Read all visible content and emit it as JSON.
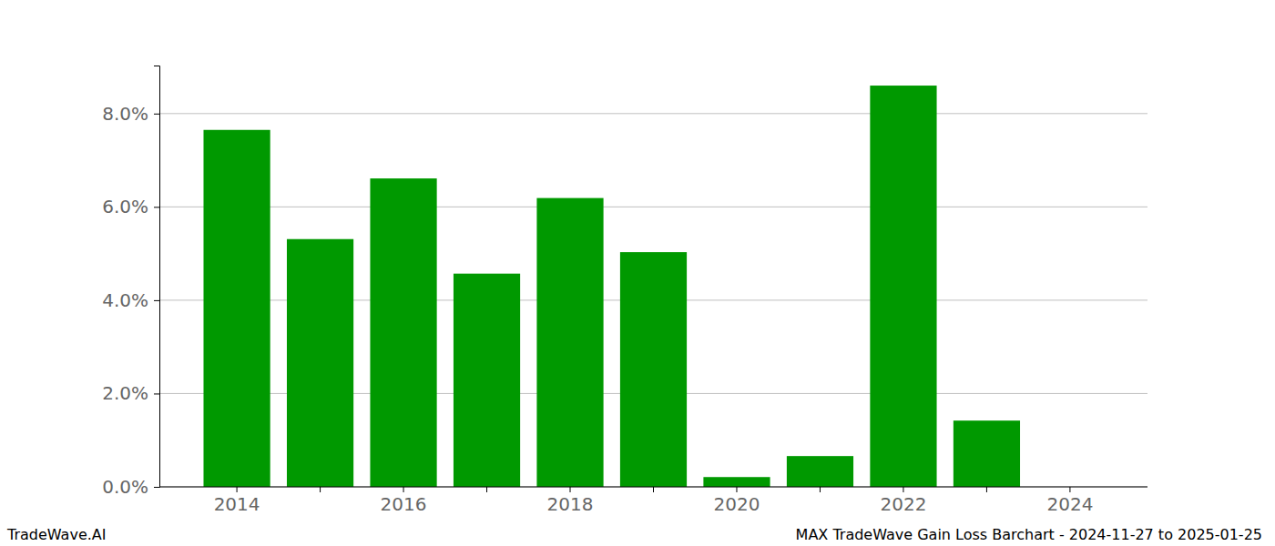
{
  "chart_data": {
    "type": "bar",
    "title": "MAX TradeWave Gain Loss Barchart - 2024-11-27 to 2025-01-25",
    "annotations": [
      "TradeWave.AI"
    ],
    "categories": [
      "2014",
      null,
      "2016",
      null,
      "2018",
      null,
      "2020",
      null,
      "2022",
      null,
      "2024"
    ],
    "values": [
      7.65,
      5.31,
      6.61,
      4.57,
      6.19,
      5.03,
      0.21,
      0.66,
      8.6,
      1.42,
      null
    ],
    "color": "#009900",
    "ylim": [
      0,
      9.03
    ],
    "yticks": [
      {
        "value": 0,
        "label": "0.0%"
      },
      {
        "value": 2,
        "label": "2.0%"
      },
      {
        "value": 4,
        "label": "4.0%"
      },
      {
        "value": 6,
        "label": "6.0%"
      },
      {
        "value": 8,
        "label": "8.0%"
      }
    ],
    "grid": true
  }
}
